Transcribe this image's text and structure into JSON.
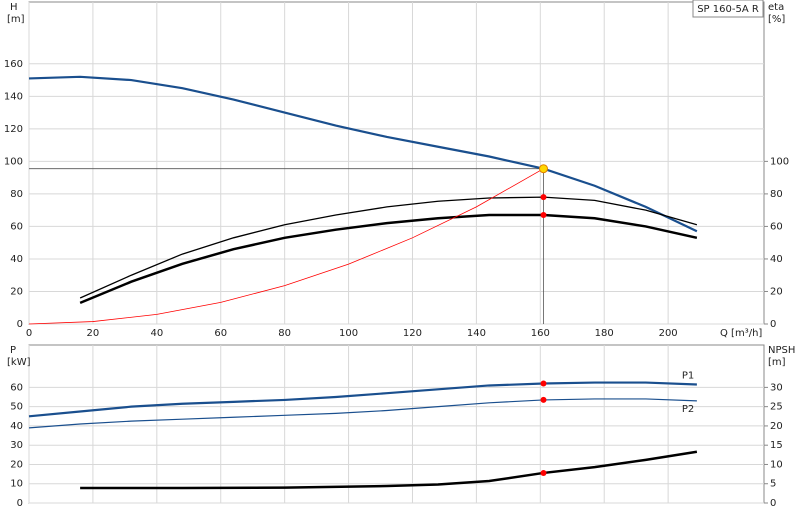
{
  "chart_data": [
    {
      "type": "line",
      "title": "SP 160-5A R",
      "x_label": "Q [m³/h]",
      "y_label": "H",
      "y_unit": "[m]",
      "y2_label": "eta",
      "y2_unit": "[%]",
      "xlim": [
        0,
        230
      ],
      "xticks": [
        0,
        20,
        40,
        60,
        80,
        100,
        120,
        140,
        160,
        180,
        200
      ],
      "ylim": [
        0,
        198
      ],
      "yticks": [
        0,
        20,
        40,
        60,
        80,
        100,
        120,
        140,
        160
      ],
      "y2lim": [
        0,
        198
      ],
      "y2ticks": [
        0,
        20,
        40,
        60,
        80,
        100
      ],
      "grid": true,
      "series": [
        {
          "color": "#1a4f8e",
          "width": 2.2,
          "x": [
            0,
            16,
            32,
            48,
            64,
            80,
            96,
            112,
            128,
            144,
            161,
            177,
            193,
            209
          ],
          "values": [
            151,
            152,
            150,
            145,
            138,
            130,
            122,
            115,
            109,
            103,
            95.5,
            85,
            72,
            57
          ]
        },
        {
          "color": "#000000",
          "width": 1.3,
          "axis": "y2",
          "x": [
            16,
            32,
            48,
            64,
            80,
            96,
            112,
            128,
            144,
            161,
            177,
            193,
            209
          ],
          "values": [
            16,
            30,
            43,
            53,
            61,
            67,
            72,
            75.5,
            77.5,
            78,
            76,
            70,
            61
          ]
        },
        {
          "color": "#000000",
          "width": 2.5,
          "axis": "y2",
          "x": [
            16,
            32,
            48,
            64,
            80,
            96,
            112,
            128,
            144,
            161,
            177,
            193,
            209
          ],
          "values": [
            13,
            26,
            37,
            46,
            53,
            58,
            62,
            65,
            67,
            67,
            65,
            60,
            53
          ]
        },
        {
          "color": "#ff0000",
          "width": 0.8,
          "x": [
            0,
            20,
            40,
            60,
            80,
            100,
            120,
            140,
            161
          ],
          "values": [
            0,
            1.5,
            5.9,
            13.3,
            23.6,
            36.8,
            53,
            72,
            95.5
          ]
        }
      ],
      "markers": [
        {
          "x": 161,
          "y": 95.5,
          "color": "#ffd700"
        },
        {
          "x": 161,
          "y": 78,
          "color": "#ff0000",
          "axis": "y2"
        },
        {
          "x": 161,
          "y": 67,
          "color": "#ff0000",
          "axis": "y2"
        }
      ]
    },
    {
      "type": "line",
      "y_label": "P",
      "y_unit": "[kW]",
      "y2_label": "NPSH",
      "y2_unit": "[m]",
      "xlim": [
        0,
        230
      ],
      "ylim": [
        0,
        82
      ],
      "yticks": [
        0,
        10,
        20,
        30,
        40,
        50,
        60
      ],
      "y2lim": [
        0,
        41
      ],
      "y2ticks": [
        0,
        5,
        10,
        15,
        20,
        25,
        30
      ],
      "grid": true,
      "series": [
        {
          "name": "P1",
          "color": "#1a4f8e",
          "width": 2.2,
          "x": [
            0,
            16,
            32,
            48,
            64,
            80,
            96,
            112,
            128,
            144,
            161,
            177,
            193,
            209
          ],
          "values": [
            45,
            47.5,
            50,
            51.5,
            52.5,
            53.5,
            55,
            57,
            59,
            61,
            62,
            62.5,
            62.5,
            61.5
          ]
        },
        {
          "name": "P2",
          "color": "#1a4f8e",
          "width": 1.2,
          "x": [
            0,
            16,
            32,
            48,
            64,
            80,
            96,
            112,
            128,
            144,
            161,
            177,
            193,
            209
          ],
          "values": [
            39,
            41,
            42.5,
            43.5,
            44.5,
            45.5,
            46.5,
            48,
            50,
            52,
            53.5,
            54,
            54,
            53
          ]
        },
        {
          "color": "#000000",
          "width": 2.5,
          "axis": "y2",
          "x": [
            16,
            48,
            80,
            112,
            128,
            144,
            161,
            177,
            193,
            209
          ],
          "values": [
            3.9,
            3.9,
            4,
            4.4,
            4.8,
            5.7,
            7.8,
            9.3,
            11.2,
            13.3
          ]
        }
      ],
      "markers": [
        {
          "x": 161,
          "y": 62,
          "color": "#ff0000"
        },
        {
          "x": 161,
          "y": 53.5,
          "color": "#ff0000"
        },
        {
          "x": 161,
          "y": 7.8,
          "color": "#ff0000",
          "axis": "y2"
        }
      ]
    }
  ]
}
